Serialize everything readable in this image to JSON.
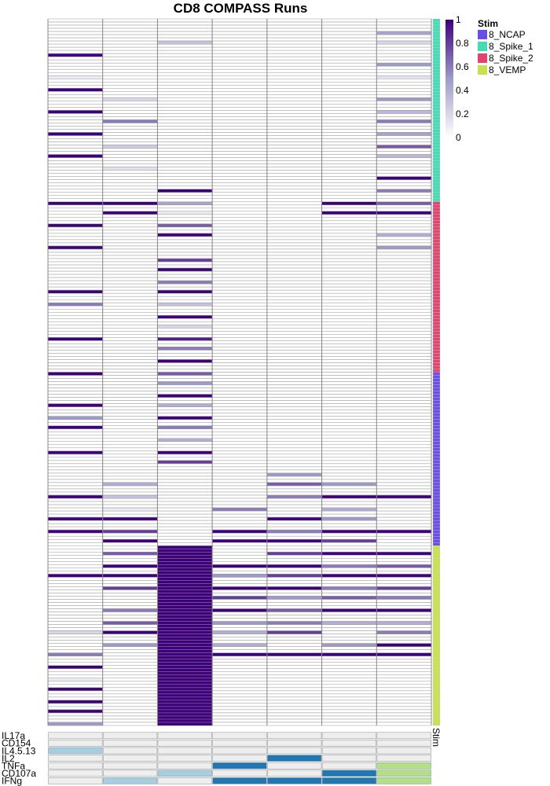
{
  "chart_data": {
    "type": "heatmap",
    "title": "CD8 COMPASS Runs",
    "n_columns": 7,
    "colorbar": {
      "ticks": [
        "1",
        "0.8",
        "0.6",
        "0.4",
        "0.2",
        "0"
      ],
      "tick_values": [
        1,
        0.8,
        0.6,
        0.4,
        0.2,
        0
      ],
      "low_color": "#ffffff",
      "high_color": "#3f007d",
      "range": [
        0,
        1
      ]
    },
    "stim_legend": {
      "title": "Stim",
      "placement": "top-right",
      "items": [
        {
          "label": "8_NCAP",
          "color": "#6b4ee6"
        },
        {
          "label": "8_Spike_1",
          "color": "#47dbb5"
        },
        {
          "label": "8_Spike_2",
          "color": "#e0456e"
        },
        {
          "label": "8_VEMP",
          "color": "#c9e051"
        }
      ]
    },
    "stim_annotation_label": "Stim",
    "row_groups": [
      {
        "stim": "8_Spike_1",
        "rows": 58
      },
      {
        "stim": "8_Spike_2",
        "rows": 54
      },
      {
        "stim": "8_NCAP",
        "rows": 55
      },
      {
        "stim": "8_VEMP",
        "rows": 57
      }
    ],
    "heat_rows": [
      [
        [
          0,
          0
        ],
        [
          1,
          0
        ],
        [
          2,
          0
        ],
        [
          3,
          0
        ],
        [
          4,
          0
        ],
        [
          5,
          0
        ],
        [
          6,
          0
        ]
      ],
      [
        [
          6,
          0.45
        ]
      ],
      [
        [
          2,
          0.3
        ],
        [
          6,
          0.2
        ]
      ],
      [
        [
          0,
          1
        ]
      ],
      [
        [
          6,
          0.5
        ]
      ],
      [
        [
          0,
          0.1
        ],
        [
          6,
          0.15
        ]
      ],
      [
        [
          0,
          1
        ]
      ],
      [
        [
          1,
          0.2
        ],
        [
          6,
          0.5
        ]
      ],
      [
        [
          0,
          1
        ],
        [
          6,
          0.35
        ]
      ],
      [
        [
          1,
          0.6
        ],
        [
          6,
          0.6
        ]
      ],
      [
        [
          0,
          1
        ],
        [
          6,
          0.45
        ]
      ],
      [
        [
          1,
          0.25
        ],
        [
          6,
          0.7
        ]
      ],
      [
        [
          0,
          1
        ],
        [
          6,
          0.35
        ]
      ],
      [
        [
          1,
          0.15
        ]
      ],
      [
        [
          6,
          1
        ]
      ],
      [
        [
          2,
          1
        ],
        [
          6,
          0.6
        ]
      ],
      [
        [
          0,
          1
        ],
        [
          1,
          1
        ],
        [
          2,
          0.45
        ],
        [
          5,
          1
        ],
        [
          6,
          0.7
        ]
      ],
      [
        [
          1,
          1
        ],
        [
          2,
          0.1
        ],
        [
          5,
          1
        ],
        [
          6,
          1
        ]
      ],
      [
        [
          0,
          1
        ],
        [
          2,
          0.7
        ]
      ],
      [
        [
          2,
          1
        ],
        [
          6,
          0.4
        ]
      ],
      [
        [
          0,
          1
        ],
        [
          6,
          0.5
        ]
      ],
      [
        [
          2,
          0.8
        ]
      ],
      [
        [
          2,
          1
        ]
      ],
      [
        [
          2,
          0.6
        ]
      ],
      [
        [
          0,
          1
        ],
        [
          2,
          1
        ]
      ],
      [
        [
          0,
          0.6
        ],
        [
          2,
          0.3
        ]
      ],
      [
        [
          2,
          1
        ]
      ],
      [
        [
          2,
          0.2
        ]
      ],
      [
        [
          0,
          1
        ],
        [
          2,
          0.9
        ]
      ],
      [
        [
          2,
          0.6
        ]
      ],
      [
        [
          2,
          1
        ]
      ],
      [
        [
          0,
          1
        ],
        [
          2,
          0.7
        ]
      ],
      [
        [
          2,
          0.5
        ]
      ],
      [
        [
          2,
          1
        ]
      ],
      [
        [
          0,
          1
        ],
        [
          2,
          0.4
        ]
      ],
      [
        [
          0,
          0.5
        ],
        [
          2,
          1
        ]
      ],
      [
        [
          0,
          1
        ],
        [
          2,
          0.6
        ]
      ],
      [
        [
          2,
          0.4
        ]
      ],
      [
        [
          0,
          1
        ],
        [
          2,
          1
        ]
      ],
      [
        [
          2,
          0.8
        ]
      ],
      [
        [
          4,
          0.5
        ]
      ],
      [
        [
          1,
          0.4
        ],
        [
          4,
          0.7
        ],
        [
          5,
          0.5
        ]
      ],
      [
        [
          0,
          1
        ],
        [
          1,
          0.3
        ],
        [
          4,
          0.6
        ],
        [
          5,
          1
        ],
        [
          6,
          1
        ]
      ],
      [
        [
          1,
          0.1
        ],
        [
          3,
          0.6
        ],
        [
          5,
          0.4
        ]
      ],
      [
        [
          0,
          1
        ],
        [
          1,
          1
        ],
        [
          4,
          1
        ],
        [
          5,
          0.5
        ]
      ],
      [
        [
          0,
          1
        ],
        [
          1,
          0.8
        ],
        [
          3,
          1
        ],
        [
          4,
          0.6
        ],
        [
          5,
          1
        ],
        [
          6,
          1
        ]
      ],
      [
        [
          1,
          1
        ],
        [
          3,
          1
        ],
        [
          4,
          1
        ],
        [
          5,
          0.8
        ]
      ],
      [
        [
          1,
          0.7
        ],
        [
          4,
          0.8
        ],
        [
          5,
          1
        ],
        [
          6,
          1
        ]
      ],
      [
        [
          1,
          1
        ],
        [
          3,
          1
        ],
        [
          4,
          1
        ],
        [
          5,
          0.6
        ],
        [
          6,
          0.7
        ]
      ],
      [
        [
          0,
          1
        ],
        [
          1,
          1
        ],
        [
          3,
          0.5
        ],
        [
          4,
          0.8
        ],
        [
          5,
          1
        ],
        [
          6,
          1
        ]
      ],
      [
        [
          1,
          0.8
        ],
        [
          3,
          1
        ],
        [
          4,
          1
        ],
        [
          5,
          0.6
        ],
        [
          6,
          0.8
        ]
      ],
      [
        [
          3,
          0.8
        ],
        [
          4,
          0.5
        ],
        [
          5,
          0.7
        ],
        [
          6,
          0.6
        ]
      ],
      [
        [
          1,
          0.6
        ],
        [
          3,
          1
        ],
        [
          4,
          0.7
        ],
        [
          5,
          1
        ],
        [
          6,
          1
        ]
      ],
      [
        [
          1,
          0.7
        ],
        [
          3,
          0.5
        ],
        [
          4,
          0.6
        ],
        [
          5,
          0.4
        ],
        [
          6,
          0.4
        ]
      ],
      [
        [
          0,
          0.2
        ],
        [
          1,
          1
        ],
        [
          3,
          0.4
        ],
        [
          4,
          0.8
        ],
        [
          6,
          0.6
        ]
      ],
      [
        [
          1,
          0.5
        ],
        [
          3,
          0.4
        ],
        [
          5,
          0.5
        ],
        [
          6,
          1
        ]
      ],
      [
        [
          0,
          0.6
        ],
        [
          2,
          1
        ],
        [
          3,
          1
        ],
        [
          4,
          1
        ],
        [
          5,
          1
        ],
        [
          6,
          1
        ]
      ],
      [
        [
          0,
          1
        ],
        [
          2,
          1
        ]
      ],
      [
        [
          0,
          0.1
        ],
        [
          2,
          1
        ]
      ],
      [
        [
          0,
          1
        ],
        [
          2,
          1
        ]
      ],
      [
        [
          0,
          1
        ],
        [
          2,
          1
        ]
      ],
      [
        [
          0,
          1
        ],
        [
          2,
          1
        ]
      ],
      [
        [
          0,
          0.5
        ],
        [
          2,
          1
        ]
      ]
    ],
    "function_rows": {
      "labels": [
        "IL17a",
        "CD154",
        "IL4.5.13",
        "IL2",
        "TNFa",
        "CD107a",
        "IFNg"
      ],
      "colors": {
        "light": "#a6cee3",
        "dark": "#1f78b4",
        "green": "#b2df8a"
      },
      "cells": [
        [
          "none",
          "none",
          "none",
          "none",
          "none",
          "none",
          "none"
        ],
        [
          "none",
          "none",
          "none",
          "none",
          "none",
          "none",
          "none"
        ],
        [
          "light",
          "none",
          "none",
          "none",
          "none",
          "none",
          "none"
        ],
        [
          "none",
          "none",
          "none",
          "none",
          "dark",
          "none",
          "none"
        ],
        [
          "none",
          "none",
          "none",
          "dark",
          "none",
          "none",
          "green"
        ],
        [
          "none",
          "none",
          "light",
          "none",
          "none",
          "dark",
          "green"
        ],
        [
          "none",
          "light",
          "none",
          "dark",
          "dark",
          "dark",
          "green"
        ]
      ]
    }
  }
}
